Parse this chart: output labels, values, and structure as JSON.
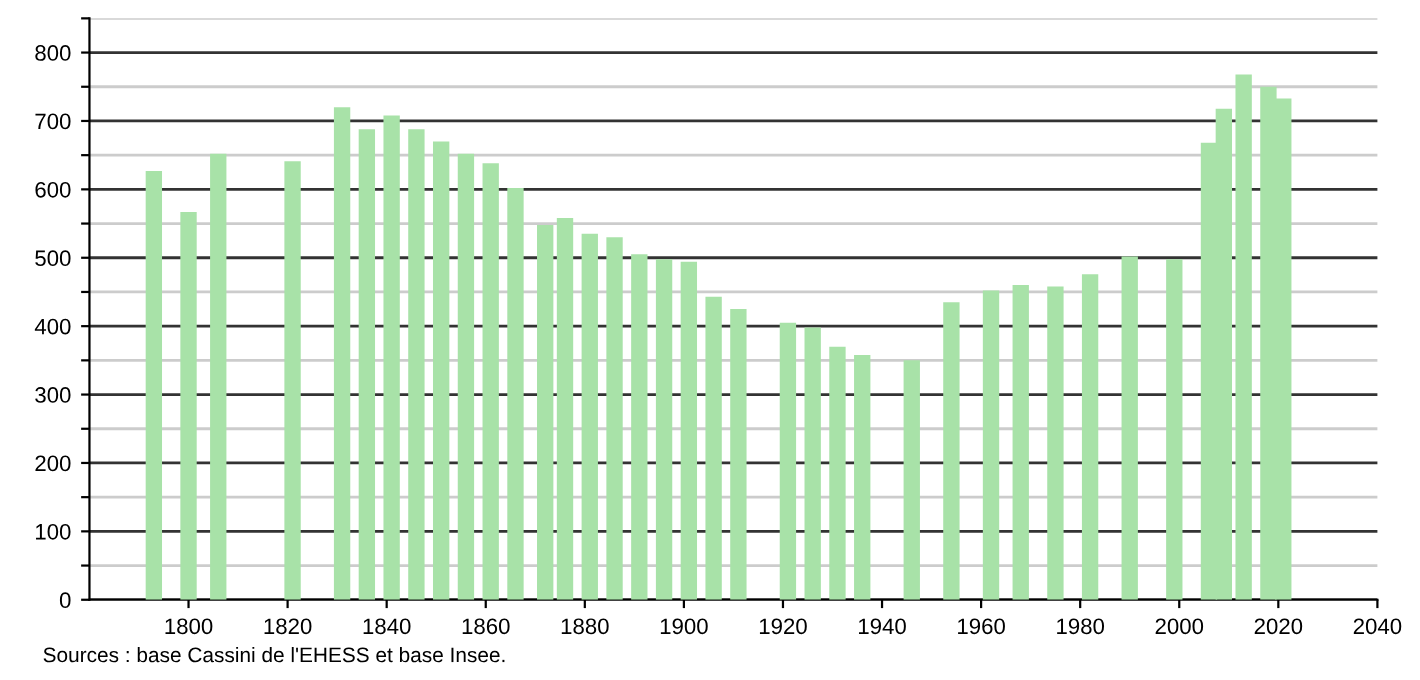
{
  "chart_data": {
    "type": "bar",
    "x": [
      1793,
      1800,
      1806,
      1821,
      1831,
      1836,
      1841,
      1846,
      1851,
      1856,
      1861,
      1866,
      1872,
      1876,
      1881,
      1886,
      1891,
      1896,
      1901,
      1906,
      1911,
      1921,
      1926,
      1931,
      1936,
      1946,
      1954,
      1962,
      1968,
      1975,
      1982,
      1990,
      1999,
      2006,
      2009,
      2013,
      2018,
      2021
    ],
    "values": [
      627,
      567,
      652,
      641,
      720,
      688,
      708,
      688,
      670,
      652,
      638,
      602,
      548,
      558,
      535,
      530,
      505,
      498,
      494,
      443,
      425,
      405,
      398,
      370,
      358,
      350,
      435,
      452,
      460,
      458,
      476,
      502,
      498,
      668,
      718,
      768,
      750,
      733
    ],
    "color": "#a8e2a8",
    "xlim": [
      1780,
      2040
    ],
    "xticks": [
      1800,
      1820,
      1840,
      1860,
      1880,
      1900,
      1920,
      1940,
      1960,
      1980,
      2000,
      2020,
      2040
    ],
    "ylim": [
      0,
      850
    ],
    "yticks": [
      0,
      {
        "value": 50,
        "label": null
      },
      100,
      {
        "value": 150,
        "label": null
      },
      200,
      {
        "value": 250,
        "label": null
      },
      300,
      {
        "value": 350,
        "label": null
      },
      400,
      {
        "value": 450,
        "label": null
      },
      500,
      {
        "value": 550,
        "label": null
      },
      600,
      {
        "value": 650,
        "label": null
      },
      700,
      {
        "value": 750,
        "label": null
      },
      800,
      {
        "value": 850,
        "label": null
      }
    ],
    "grid": "y",
    "annotations": [
      "Sources : base Cassini de l'EHESS et base Insee."
    ]
  }
}
